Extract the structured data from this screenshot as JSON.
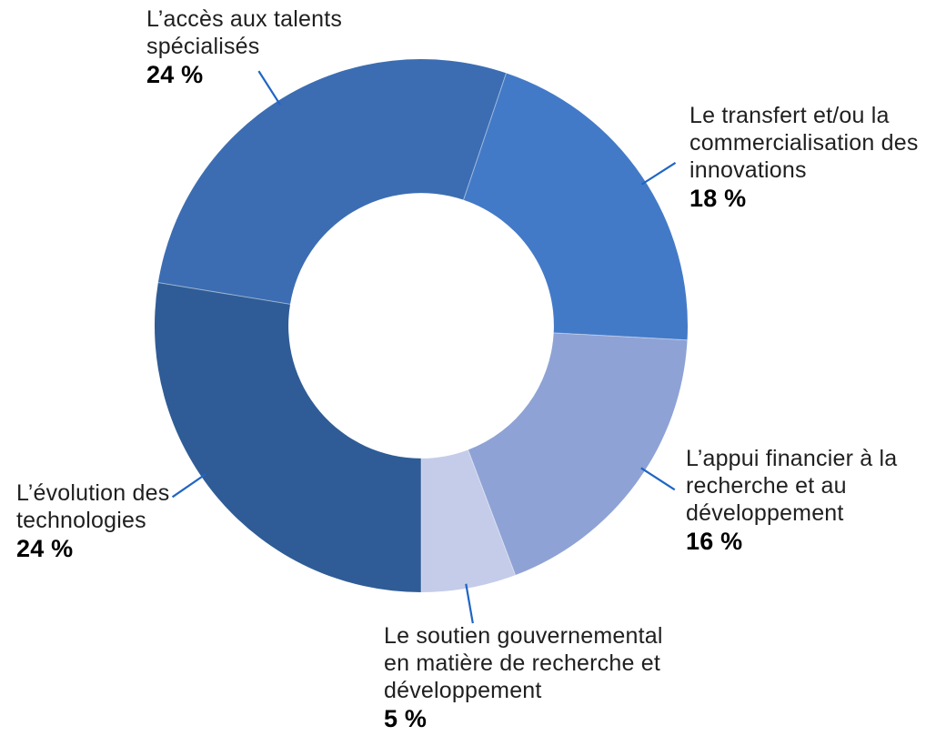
{
  "chart_data": {
    "type": "donut",
    "title": "",
    "unit": "%",
    "legend": "none",
    "background": "#FFFFFF",
    "text_color": "#1F1F1F",
    "value_color": "#000000",
    "leader_line_color": "#1F65C5",
    "separator_color": "#FFFFFF",
    "start_angle_deg": 279.3,
    "inner_radius_ratio": 0.498,
    "segments": [
      {
        "label": "L’accès aux talents spécialisés",
        "label_lines": [
          "L’accès aux talents",
          "spécialisés"
        ],
        "value": 24,
        "value_label": "24 %",
        "color": "#3C6DB2"
      },
      {
        "label": "Le transfert et/ou la commercialisation des innovations",
        "label_lines": [
          "Le transfert et/ou la",
          "commercialisation des",
          "innovations"
        ],
        "value": 18,
        "value_label": "18 %",
        "color": "#437AC7"
      },
      {
        "label": "L’appui financier à la recherche et au développement",
        "label_lines": [
          "L’appui financier à la",
          "recherche et au",
          "développement"
        ],
        "value": 16,
        "value_label": "16 %",
        "color": "#8EA2D5"
      },
      {
        "label": "Le soutien gouvernemental en matière de recherche et développement",
        "label_lines": [
          "Le soutien gouvernemental",
          "en matière de recherche et",
          "développement"
        ],
        "value": 5,
        "value_label": "5 %",
        "color": "#C4CCE9"
      },
      {
        "label": "L’évolution des technologies",
        "label_lines": [
          "L’évolution des",
          "technologies"
        ],
        "value": 24,
        "value_label": "24 %",
        "color": "#2F5C96"
      }
    ]
  }
}
